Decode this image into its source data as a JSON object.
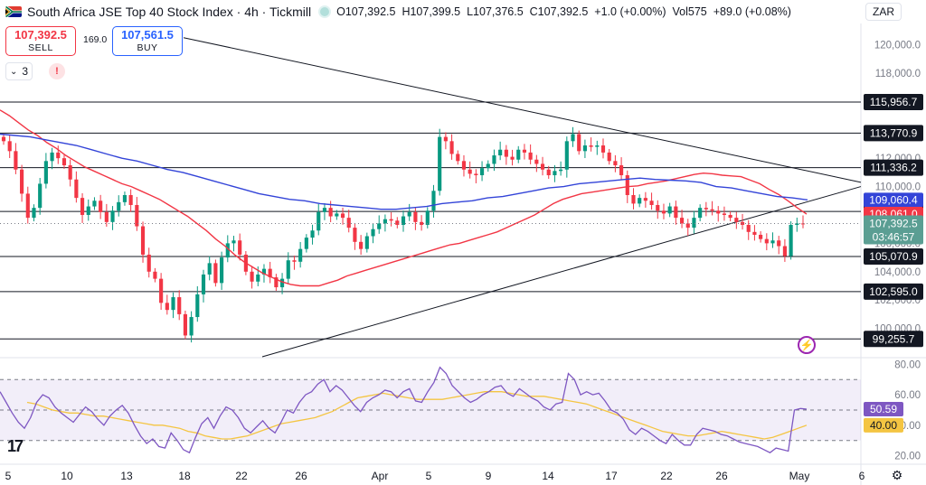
{
  "header": {
    "title": "South Africa JSE Top 40 Stock Index · 4h · Tickmill",
    "open": "O107,392.5",
    "high": "H107,399.5",
    "low": "L107,376.5",
    "close": "C107,392.5",
    "change": "+1.0 (+0.00%)",
    "volume": "Vol575",
    "vol_change": "+89.0 (+0.08%)",
    "flag_icon": "south-africa-flag-icon"
  },
  "trade": {
    "sell_price": "107,392.5",
    "sell_label": "SELL",
    "spread": "169.0",
    "buy_price": "107,561.5",
    "buy_label": "BUY"
  },
  "toolbar": {
    "indicator_count": "3",
    "alert_symbol": "!",
    "currency": "ZAR"
  },
  "colors": {
    "up": "#089981",
    "down": "#f23645",
    "ma_red": "#f23645",
    "ma_blue": "#3344d8",
    "rsi": "#7e57c2",
    "rsi_ma": "#f4c542"
  },
  "chart_data": [
    {
      "type": "candlestick",
      "title": "South Africa JSE Top 40 Stock Index · 4h · Tickmill",
      "ylim": [
        98000,
        121500
      ],
      "y_ticks": [
        "120,000.0",
        "118,000.0",
        "116,000.0",
        "114,000.0",
        "112,000.0",
        "110,000.0",
        "108,000.0",
        "106,000.0",
        "104,000.0",
        "102,000.0",
        "100,000.0"
      ],
      "x_ticks": [
        "5",
        "10",
        "13",
        "18",
        "22",
        "26",
        "Apr",
        "5",
        "9",
        "14",
        "17",
        "22",
        "26",
        "May",
        "6"
      ],
      "horizontal_levels": [
        "115,956.7",
        "113,770.9",
        "111,336.2",
        "108,248.5",
        "105,070.9",
        "102,595.0",
        "99,255.7"
      ],
      "price_labels": [
        {
          "text": "109,060.4",
          "kind": "ma-blue"
        },
        {
          "text": "108,061.0",
          "kind": "ma-red"
        },
        {
          "text": "107,392.5",
          "kind": "last-price"
        },
        {
          "text": "03:46:57",
          "kind": "countdown"
        }
      ],
      "series": [
        {
          "name": "close",
          "values": [
            113200,
            112500,
            111200,
            109500,
            107800,
            108500,
            110200,
            111800,
            112400,
            112000,
            111500,
            110500,
            109200,
            108000,
            108600,
            109000,
            108200,
            107500,
            108300,
            108900,
            109400,
            108700,
            107200,
            105200,
            104000,
            103500,
            101800,
            101300,
            102200,
            101000,
            99500,
            100800,
            102400,
            103800,
            104600,
            103200,
            105000,
            106000,
            106200,
            105200,
            104000,
            103300,
            103800,
            104200,
            103600,
            102900,
            103500,
            104800,
            104700,
            105600,
            106400,
            106900,
            108200,
            108500,
            107900,
            108100,
            107800,
            107100,
            106100,
            105600,
            106500,
            107000,
            107400,
            107700,
            107600,
            107300,
            107900,
            108200,
            107500,
            107300,
            108300,
            109700,
            113500,
            113200,
            112300,
            111800,
            111200,
            110900,
            110800,
            111300,
            111600,
            112200,
            112600,
            112100,
            111900,
            112600,
            112400,
            111900,
            111600,
            111200,
            110800,
            111100,
            111200,
            113200,
            113700,
            112500,
            112900,
            112800,
            112900,
            112400,
            111800,
            111500,
            110800,
            109400,
            108800,
            109200,
            109000,
            108700,
            108300,
            108100,
            108600,
            107800,
            107400,
            107100,
            107800,
            108500,
            108400,
            108300,
            108100,
            108000,
            107800,
            107500,
            107300,
            106800,
            106600,
            106300,
            106000,
            106200,
            105800,
            105100,
            107300,
            107400,
            107392.5
          ]
        },
        {
          "name": "MA red",
          "values": [
            115400,
            115000,
            114500,
            114000,
            113600,
            113100,
            112700,
            112200,
            111800,
            111400,
            111100,
            110800,
            110500,
            110200,
            110000,
            109700,
            109400,
            109100,
            108700,
            108300,
            107900,
            107400,
            106900,
            106300,
            105800,
            105200,
            104700,
            104300,
            103900,
            103600,
            103300,
            103100,
            103000,
            103000,
            103000,
            103200,
            103400,
            103700,
            103900,
            104100,
            104300,
            104500,
            104700,
            104900,
            105100,
            105300,
            105500,
            105700,
            105900,
            106000,
            106200,
            106400,
            106600,
            106800,
            107100,
            107400,
            107700,
            108000,
            108400,
            108800,
            109100,
            109300,
            109500,
            109600,
            109700,
            109800,
            109900,
            110000,
            110050,
            110200,
            110300,
            110400,
            110550,
            110700,
            110850,
            110950,
            110900,
            110800,
            110750,
            110700,
            110450,
            110200,
            109800,
            109450,
            109000,
            108500,
            108061
          ]
        },
        {
          "name": "MA blue",
          "values": [
            113700,
            113600,
            113500,
            113300,
            113100,
            112900,
            112600,
            112300,
            112000,
            111800,
            111500,
            111200,
            111000,
            110700,
            110400,
            110100,
            109800,
            109500,
            109300,
            109100,
            109000,
            108800,
            108700,
            108600,
            108500,
            108400,
            108400,
            108500,
            108600,
            108800,
            108900,
            109000,
            109200,
            109300,
            109500,
            109700,
            109900,
            110000,
            110200,
            110300,
            110400,
            110500,
            110600,
            110500,
            110450,
            110400,
            110300,
            110000,
            109900,
            109700,
            109500,
            109300,
            109200,
            109060.4
          ]
        }
      ]
    },
    {
      "type": "line",
      "title": "RSI",
      "ylim": [
        20,
        80
      ],
      "y_ticks": [
        "80.00",
        "60.00",
        "40.00",
        "20.00"
      ],
      "levels": [
        70,
        50,
        30
      ],
      "series": [
        {
          "name": "RSI",
          "values": [
            62,
            55,
            48,
            42,
            38,
            45,
            55,
            60,
            58,
            52,
            48,
            45,
            42,
            47,
            52,
            49,
            44,
            40,
            46,
            50,
            53,
            48,
            40,
            33,
            28,
            31,
            26,
            25,
            35,
            30,
            24,
            22,
            32,
            41,
            45,
            38,
            46,
            52,
            50,
            45,
            38,
            35,
            39,
            43,
            38,
            35,
            42,
            50,
            48,
            55,
            60,
            62,
            67,
            70,
            62,
            66,
            63,
            58,
            53,
            49,
            55,
            58,
            60,
            63,
            62,
            58,
            62,
            64,
            56,
            55,
            62,
            68,
            78,
            74,
            66,
            62,
            58,
            55,
            57,
            60,
            62,
            65,
            66,
            61,
            59,
            64,
            61,
            58,
            56,
            52,
            50,
            54,
            55,
            74,
            70,
            60,
            62,
            60,
            61,
            56,
            50,
            48,
            44,
            37,
            34,
            38,
            36,
            33,
            30,
            28,
            34,
            30,
            27,
            27,
            34,
            38,
            37,
            36,
            34,
            33,
            31,
            29,
            28,
            27,
            26,
            24,
            22,
            25,
            24,
            23,
            50,
            51,
            50.59
          ]
        },
        {
          "name": "RSI MA",
          "values": [
            55,
            54,
            52,
            50,
            49,
            48,
            48,
            47,
            46,
            46,
            45,
            44,
            43,
            42,
            41,
            40,
            40,
            39,
            38,
            36,
            35,
            33,
            32,
            31,
            31,
            32,
            33,
            35,
            37,
            39,
            41,
            42,
            43,
            44,
            45,
            47,
            49,
            52,
            55,
            58,
            59,
            60,
            61,
            60,
            59,
            58,
            57,
            57,
            57,
            57,
            58,
            59,
            60,
            61,
            62,
            62,
            62,
            61,
            60,
            59,
            59,
            59,
            58,
            57,
            56,
            55,
            54,
            52,
            50,
            48,
            46,
            44,
            42,
            40,
            38,
            36,
            35,
            34,
            33,
            33,
            34,
            35,
            36,
            35,
            34,
            33,
            32,
            31,
            32,
            34,
            36,
            38,
            40
          ]
        }
      ],
      "value_labels": [
        "50.59",
        "40.00"
      ]
    }
  ]
}
